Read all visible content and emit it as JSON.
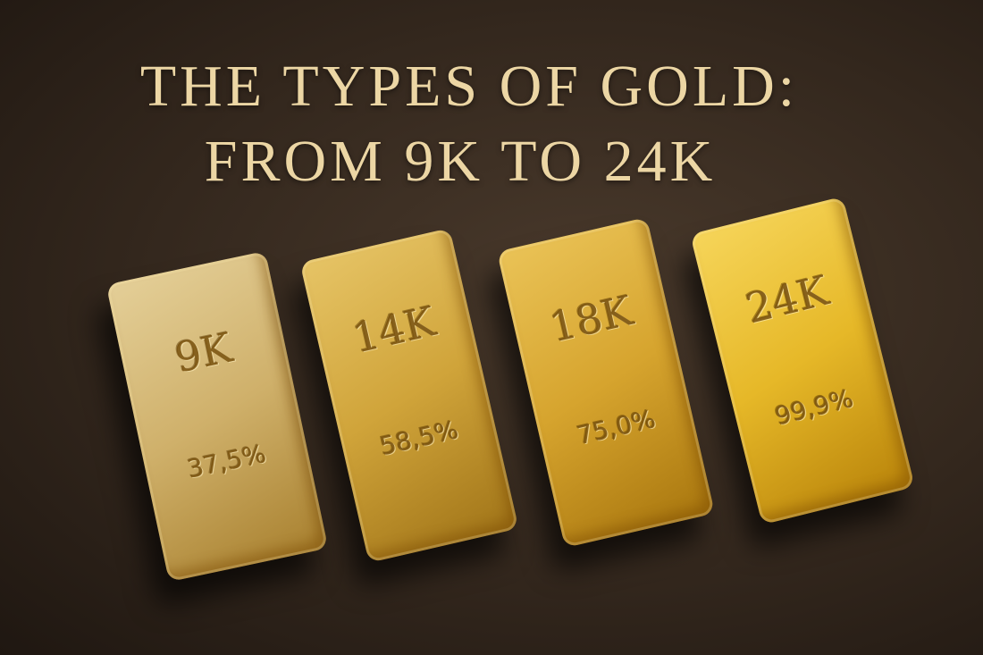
{
  "title": {
    "line1": "THE TYPES OF GOLD:",
    "line2": "FROM 9K TO 24K"
  },
  "bars": [
    {
      "karat": "9K",
      "purity": "37,5%",
      "color": "#d8bd7e"
    },
    {
      "karat": "14K",
      "purity": "58,5%",
      "color": "#d4a83f"
    },
    {
      "karat": "18K",
      "purity": "75,0%",
      "color": "#d9a630"
    },
    {
      "karat": "24K",
      "purity": "99,9%",
      "color": "#eabb2a"
    }
  ]
}
